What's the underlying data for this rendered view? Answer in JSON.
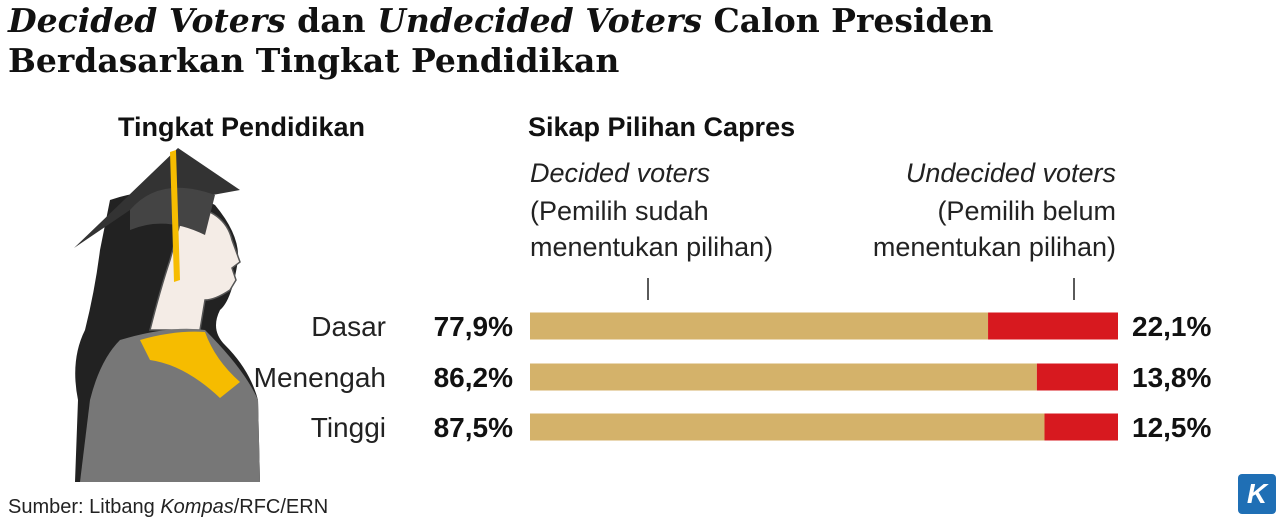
{
  "chart_data": {
    "type": "bar",
    "orientation": "horizontal",
    "stacked": true,
    "title": [
      "Decided Voters",
      " dan ",
      "Undecided Voters",
      " Calon Presiden",
      "Berdasarkan Tingkat Pendidikan"
    ],
    "category_header": "Tingkat Pendidikan",
    "value_header": "Sikap Pilihan Capres",
    "categories": [
      "Dasar",
      "Menengah",
      "Tinggi"
    ],
    "xlim": [
      0,
      100
    ],
    "series": [
      {
        "name": "Decided voters",
        "note": [
          "(Pemilih sudah",
          "menentukan pilihan)"
        ],
        "color": "#d4b26a",
        "values": [
          77.9,
          86.2,
          87.5
        ],
        "value_labels": [
          "77,9%",
          "86,2%",
          "87,5%"
        ]
      },
      {
        "name": "Undecided voters",
        "note": [
          "(Pemilih belum",
          "menentukan pilihan)"
        ],
        "color": "#d7191f",
        "values": [
          22.1,
          13.8,
          12.5
        ],
        "value_labels": [
          "22,1%",
          "13,8%",
          "12,5%"
        ]
      }
    ],
    "source": [
      "Sumber: Litbang ",
      "Kompas",
      "/RFC/ERN"
    ],
    "logo": "K"
  }
}
